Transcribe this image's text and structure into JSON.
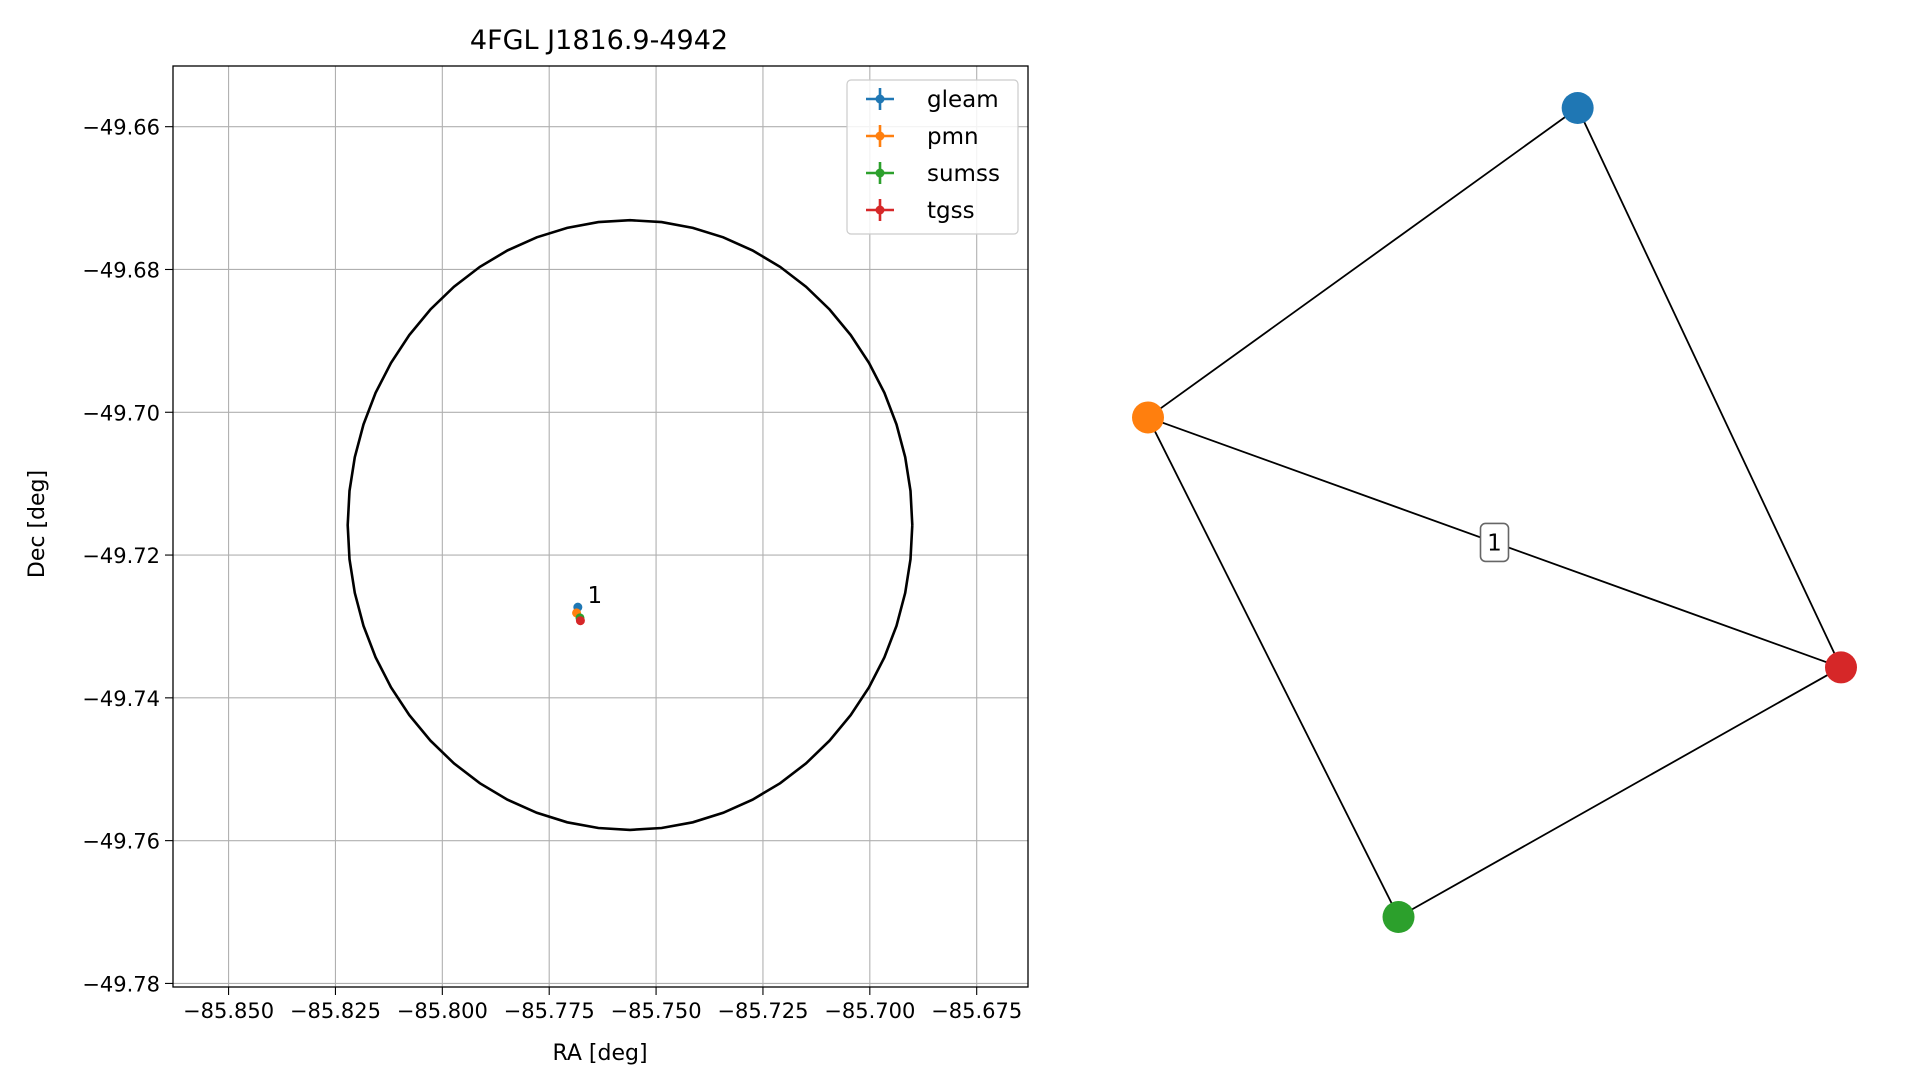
{
  "chart_data": [
    {
      "type": "scatter",
      "title": "4FGL J1816.9-4942",
      "xlabel": "RA [deg]",
      "ylabel": "Dec [deg]",
      "xlim": [
        -85.863,
        -85.663
      ],
      "ylim": [
        -49.7805,
        -49.6515
      ],
      "xticks": [
        -85.85,
        -85.825,
        -85.8,
        -85.775,
        -85.75,
        -85.725,
        -85.7,
        -85.675
      ],
      "xtick_labels": [
        "−85.850",
        "−85.825",
        "−85.800",
        "−85.775",
        "−85.750",
        "−85.725",
        "−85.700",
        "−85.675"
      ],
      "yticks": [
        -49.66,
        -49.68,
        -49.7,
        -49.72,
        -49.74,
        -49.76,
        -49.78
      ],
      "ytick_labels": [
        "−49.66",
        "−49.68",
        "−49.70",
        "−49.72",
        "−49.74",
        "−49.76",
        "−49.78"
      ],
      "grid": true,
      "legend": "top-right",
      "series": [
        {
          "name": "gleam",
          "color": "#1f77b4",
          "x": [
            -85.7683
          ],
          "y": [
            -49.7273
          ]
        },
        {
          "name": "pmn",
          "color": "#ff7f0e",
          "x": [
            -85.7686
          ],
          "y": [
            -49.7281
          ]
        },
        {
          "name": "sumss",
          "color": "#2ca02c",
          "x": [
            -85.7678
          ],
          "y": [
            -49.7288
          ]
        },
        {
          "name": "tgss",
          "color": "#d62728",
          "x": [
            -85.7677
          ],
          "y": [
            -49.7292
          ]
        }
      ],
      "circle": {
        "center_ra": -85.7561,
        "center_dec": -49.7158,
        "radius_dec": 0.0427,
        "color": "#000000"
      },
      "annotations": [
        {
          "text": "1",
          "x": -85.7665,
          "y": -49.727
        }
      ]
    },
    {
      "type": "network",
      "nodes": [
        {
          "id": "gleam",
          "color": "#1f77b4",
          "x": 0.62,
          "y": 1.0
        },
        {
          "id": "pmn",
          "color": "#ff7f0e",
          "x": 0.0,
          "y": 0.6175
        },
        {
          "id": "sumss",
          "color": "#2ca02c",
          "x": 0.3615,
          "y": 0.0
        },
        {
          "id": "tgss",
          "color": "#d62728",
          "x": 1.0,
          "y": 0.3085
        }
      ],
      "edges": [
        {
          "source": "pmn",
          "target": "gleam"
        },
        {
          "source": "gleam",
          "target": "tgss"
        },
        {
          "source": "pmn",
          "target": "tgss"
        },
        {
          "source": "pmn",
          "target": "sumss"
        },
        {
          "source": "sumss",
          "target": "tgss"
        }
      ],
      "edge_label": "1"
    }
  ]
}
